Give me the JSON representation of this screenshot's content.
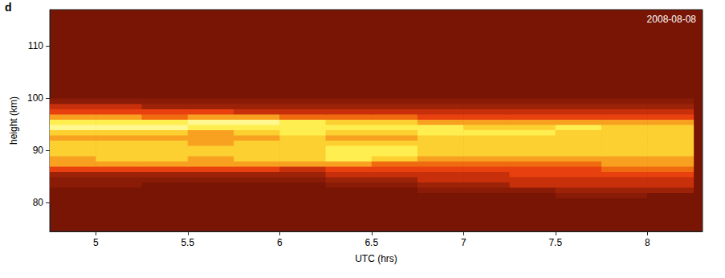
{
  "chart_data": {
    "type": "heatmap",
    "panel": "d",
    "annotation": "2008-08-08",
    "x_label": "UTC (hrs)",
    "y_label": "height (km)",
    "xlim": [
      4.75,
      8.3
    ],
    "xticks": [
      5,
      5.5,
      6,
      6.5,
      7,
      7.5,
      8
    ],
    "ylim": [
      74.5,
      117
    ],
    "yticks": [
      80,
      90,
      100,
      110
    ],
    "zlim": [
      0,
      10
    ],
    "x_edges": [
      4.75,
      5,
      5.25,
      5.5,
      5.75,
      6,
      6.25,
      6.5,
      6.75,
      7,
      7.25,
      7.5,
      7.75,
      8,
      8.25
    ],
    "y_edges": [
      80,
      81,
      82,
      83,
      84,
      85,
      86,
      87,
      88,
      89,
      90,
      91,
      92,
      93,
      94,
      95,
      96,
      97,
      98,
      99,
      100
    ],
    "cells": [
      [
        0,
        0,
        0,
        0,
        0,
        0,
        0,
        0,
        0,
        0,
        0,
        0,
        0,
        0
      ],
      [
        0,
        0,
        0,
        0,
        0,
        0,
        0,
        0,
        0,
        0,
        0,
        1,
        1,
        0
      ],
      [
        0,
        0,
        0,
        0,
        0,
        0,
        0,
        0,
        1,
        1,
        1,
        2,
        2,
        2
      ],
      [
        1,
        1,
        0,
        0,
        0,
        0,
        1,
        1,
        2,
        2,
        3,
        3,
        3,
        3
      ],
      [
        1,
        1,
        1,
        1,
        1,
        1,
        2,
        2,
        3,
        3,
        3,
        3,
        3,
        3
      ],
      [
        2,
        2,
        2,
        2,
        2,
        2,
        3,
        3,
        3,
        3,
        4,
        4,
        4,
        4
      ],
      [
        4,
        4,
        4,
        4,
        4,
        3,
        4,
        4,
        4,
        4,
        4,
        4,
        5,
        5
      ],
      [
        6,
        6,
        6,
        6,
        6,
        6,
        6,
        5,
        5,
        5,
        5,
        5,
        6,
        6
      ],
      [
        6,
        7,
        7,
        6,
        7,
        7,
        8,
        7,
        6,
        6,
        6,
        6,
        6,
        6
      ],
      [
        7,
        7,
        7,
        7,
        7,
        7,
        8,
        8,
        7,
        7,
        7,
        7,
        7,
        7
      ],
      [
        7,
        7,
        7,
        7,
        7,
        7,
        8,
        8,
        7,
        7,
        7,
        7,
        7,
        7
      ],
      [
        7,
        7,
        7,
        6,
        7,
        7,
        7,
        7,
        7,
        7,
        7,
        7,
        7,
        7
      ],
      [
        6,
        6,
        6,
        6,
        6,
        7,
        6,
        6,
        7,
        7,
        7,
        7,
        7,
        7
      ],
      [
        7,
        7,
        7,
        6,
        7,
        8,
        7,
        7,
        8,
        8,
        8,
        7,
        7,
        7
      ],
      [
        9,
        9,
        9,
        8,
        8,
        8,
        8,
        8,
        8,
        7,
        7,
        8,
        7,
        7
      ],
      [
        8,
        8,
        8,
        9,
        9,
        8,
        7,
        7,
        6,
        6,
        6,
        6,
        6,
        6
      ],
      [
        6,
        6,
        5,
        6,
        6,
        5,
        5,
        5,
        4,
        4,
        4,
        4,
        4,
        4
      ],
      [
        4,
        4,
        4,
        4,
        3,
        3,
        3,
        3,
        3,
        3,
        3,
        3,
        3,
        3
      ],
      [
        3,
        3,
        2,
        2,
        2,
        2,
        2,
        2,
        2,
        2,
        2,
        2,
        2,
        2
      ],
      [
        1,
        1,
        1,
        1,
        1,
        1,
        1,
        1,
        1,
        1,
        1,
        1,
        1,
        1
      ]
    ]
  }
}
